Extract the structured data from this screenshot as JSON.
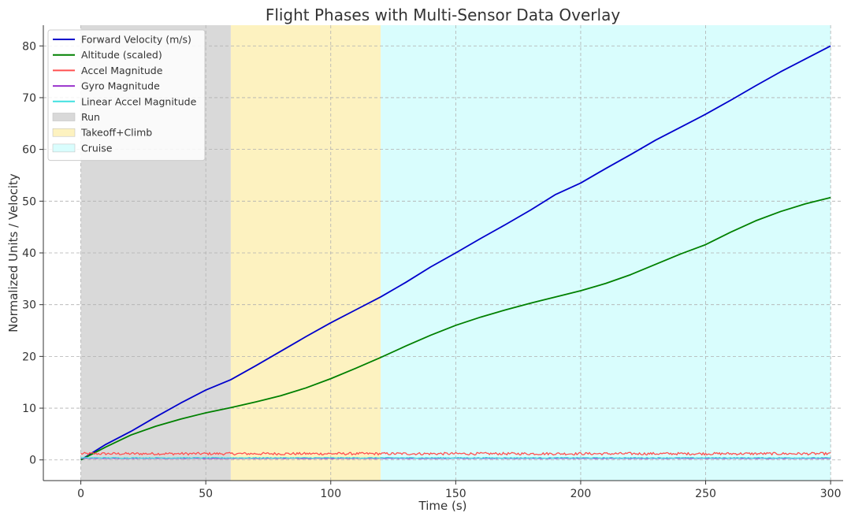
{
  "chart_data": {
    "type": "line",
    "title": "Flight Phases with Multi-Sensor Data Overlay",
    "xlabel": "Time (s)",
    "ylabel": "Normalized Units / Velocity",
    "xlim": [
      -15,
      305
    ],
    "ylim": [
      -4,
      84
    ],
    "x_ticks": [
      0,
      50,
      100,
      150,
      200,
      250,
      300
    ],
    "y_ticks": [
      0,
      10,
      20,
      30,
      40,
      50,
      60,
      70,
      80
    ],
    "grid": true,
    "legend_position": "top-left",
    "phases": [
      {
        "name": "Run",
        "start": 0,
        "end": 60,
        "color": "#d9d9d9"
      },
      {
        "name": "Takeoff+Climb",
        "start": 60,
        "end": 120,
        "color": "#fdf2c0"
      },
      {
        "name": "Cruise",
        "start": 120,
        "end": 300,
        "color": "#d9fdfd"
      }
    ],
    "series": [
      {
        "name": "Forward Velocity (m/s)",
        "color": "#0000cc",
        "x": [
          0,
          10,
          20,
          30,
          40,
          50,
          60,
          70,
          80,
          90,
          100,
          110,
          120,
          130,
          140,
          150,
          160,
          170,
          180,
          190,
          200,
          210,
          220,
          230,
          240,
          250,
          260,
          270,
          280,
          290,
          300
        ],
        "values": [
          0,
          3,
          5.5,
          8.3,
          11,
          13.5,
          15.5,
          18.2,
          21,
          23.8,
          26.5,
          29,
          31.5,
          34.3,
          37.3,
          40,
          42.8,
          45.5,
          48.3,
          51.3,
          53.5,
          56.3,
          59,
          61.8,
          64.3,
          66.8,
          69.5,
          72.3,
          75,
          77.5,
          80
        ]
      },
      {
        "name": "Altitude (scaled)",
        "color": "#008000",
        "x": [
          0,
          10,
          20,
          30,
          40,
          50,
          60,
          70,
          80,
          90,
          100,
          110,
          120,
          130,
          140,
          150,
          160,
          170,
          180,
          190,
          200,
          210,
          220,
          230,
          240,
          250,
          260,
          270,
          280,
          290,
          300
        ],
        "values": [
          0,
          2.5,
          4.8,
          6.5,
          7.9,
          9.1,
          10.1,
          11.2,
          12.4,
          13.9,
          15.7,
          17.7,
          19.8,
          22,
          24.1,
          26,
          27.6,
          29,
          30.3,
          31.5,
          32.7,
          34.1,
          35.8,
          37.8,
          39.8,
          41.6,
          44,
          46.2,
          48,
          49.5,
          50.7
        ]
      },
      {
        "name": "Accel Magnitude",
        "color": "#ff5050",
        "x": [
          0,
          300
        ],
        "values": [
          1.2,
          1.2
        ],
        "noise": 0.25
      },
      {
        "name": "Gyro Magnitude",
        "color": "#9932cc",
        "x": [
          0,
          300
        ],
        "values": [
          0.3,
          0.3
        ],
        "noise": 0.05
      },
      {
        "name": "Linear Accel Magnitude",
        "color": "#40e0e0",
        "x": [
          0,
          300
        ],
        "values": [
          0.4,
          0.4
        ],
        "noise": 0.08
      }
    ]
  }
}
